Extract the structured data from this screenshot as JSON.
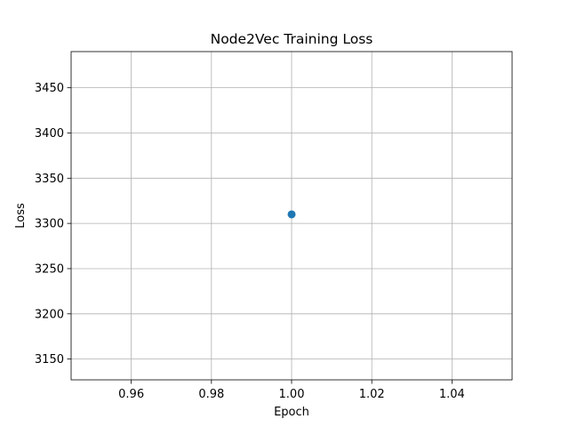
{
  "chart_data": {
    "type": "scatter",
    "title": "Node2Vec Training Loss",
    "xlabel": "Epoch",
    "ylabel": "Loss",
    "xlim": [
      0.945,
      1.055
    ],
    "ylim": [
      3127,
      3490
    ],
    "xticks": [
      0.96,
      0.98,
      1.0,
      1.02,
      1.04
    ],
    "xtick_labels": [
      "0.96",
      "0.98",
      "1.00",
      "1.02",
      "1.04"
    ],
    "yticks": [
      3150,
      3200,
      3250,
      3300,
      3350,
      3400,
      3450
    ],
    "ytick_labels": [
      "3150",
      "3200",
      "3250",
      "3300",
      "3350",
      "3400",
      "3450"
    ],
    "grid": true,
    "series": [
      {
        "x": [
          1.0
        ],
        "y": [
          3310
        ],
        "color": "#1f77b4"
      }
    ]
  }
}
